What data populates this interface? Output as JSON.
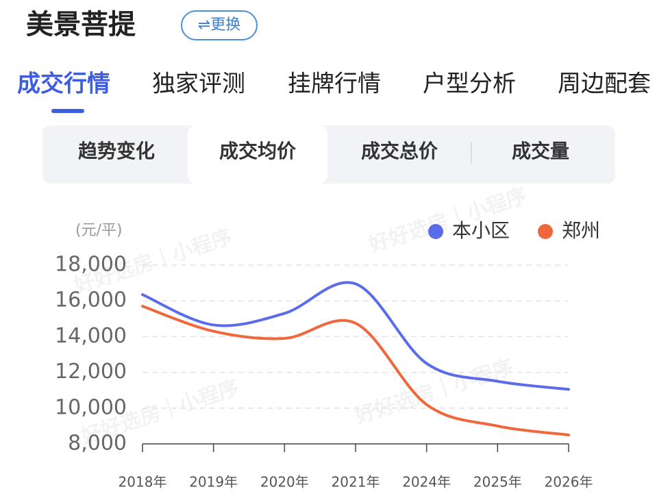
{
  "header": {
    "title": "美景菩提",
    "button": "⇌更换"
  },
  "tabs": [
    "成交行情",
    "独家评测",
    "挂牌行情",
    "户型分析",
    "周边配套"
  ],
  "subtabs": [
    "趋势变化",
    "成交均价",
    "成交总价",
    "成交量"
  ],
  "watermark": "好好选房｜小程序",
  "chart_data": {
    "type": "line",
    "unit_label": "(元/平)",
    "categories": [
      "2018年",
      "2019年",
      "2020年",
      "2021年",
      "2024年",
      "2025年",
      "2026年"
    ],
    "series": [
      {
        "name": "本小区",
        "color": "#5a6ce9",
        "values": [
          16350,
          14650,
          15300,
          16950,
          12500,
          11500,
          11050
        ]
      },
      {
        "name": "郑州",
        "color": "#f0673b",
        "values": [
          15700,
          14300,
          13900,
          14750,
          10200,
          9000,
          8500
        ]
      }
    ],
    "ylim": [
      8000,
      18000
    ],
    "yticks": [
      {
        "value": 8000,
        "label": "8,000"
      },
      {
        "value": 10000,
        "label": "10,000"
      },
      {
        "value": 12000,
        "label": "12,000"
      },
      {
        "value": 14000,
        "label": "14,000"
      },
      {
        "value": 16000,
        "label": "16,000"
      },
      {
        "value": 18000,
        "label": "18,000"
      }
    ],
    "grid": true,
    "legend": "top-right",
    "smooth": true
  }
}
